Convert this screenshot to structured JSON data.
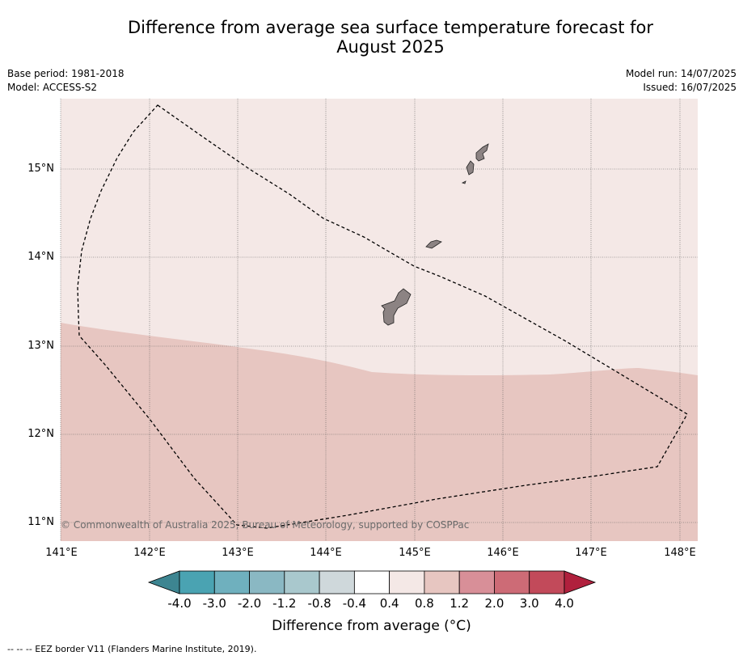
{
  "title": {
    "line1": "Difference from average sea surface temperature forecast for",
    "line2": "August 2025"
  },
  "meta": {
    "base_period": "Base period: 1981-2018",
    "model": "Model: ACCESS-S2",
    "model_run": "Model run: 14/07/2025",
    "issued": "Issued: 16/07/2025"
  },
  "map": {
    "lat_labels": [
      "15°N",
      "14°N",
      "13°N",
      "12°N",
      "11°N"
    ],
    "lon_labels": [
      "141°E",
      "142°E",
      "143°E",
      "144°E",
      "145°E",
      "146°E",
      "147°E",
      "148°E"
    ],
    "copyright": "© Commonwealth of Australia 2025, Bureau of Meteorology, supported by COSPPac",
    "colors": {
      "ocean_light": "#f4e8e6",
      "ocean_warm": "#e7c6c1",
      "land": "#8c8383"
    }
  },
  "colorbar": {
    "ticks": [
      "-4.0",
      "-3.0",
      "-2.0",
      "-1.2",
      "-0.8",
      "-0.4",
      "0.4",
      "0.8",
      "1.2",
      "2.0",
      "3.0",
      "4.0"
    ],
    "colors": [
      "#4aa3b2",
      "#6fb0be",
      "#8ab8c3",
      "#a9c8cd",
      "#cfd8db",
      "#ffffff",
      "#f4e8e6",
      "#e7c6c1",
      "#d88f98",
      "#cd6b76",
      "#c24a5a"
    ],
    "under_color": "#3d8591",
    "over_color": "#b0203d",
    "label": "Difference from average ($^\\circ$C)",
    "label_display": "Difference from average (°C)"
  },
  "footnote": "--  --  -- EEZ border V11 (Flanders Marine Institute, 2019)."
}
